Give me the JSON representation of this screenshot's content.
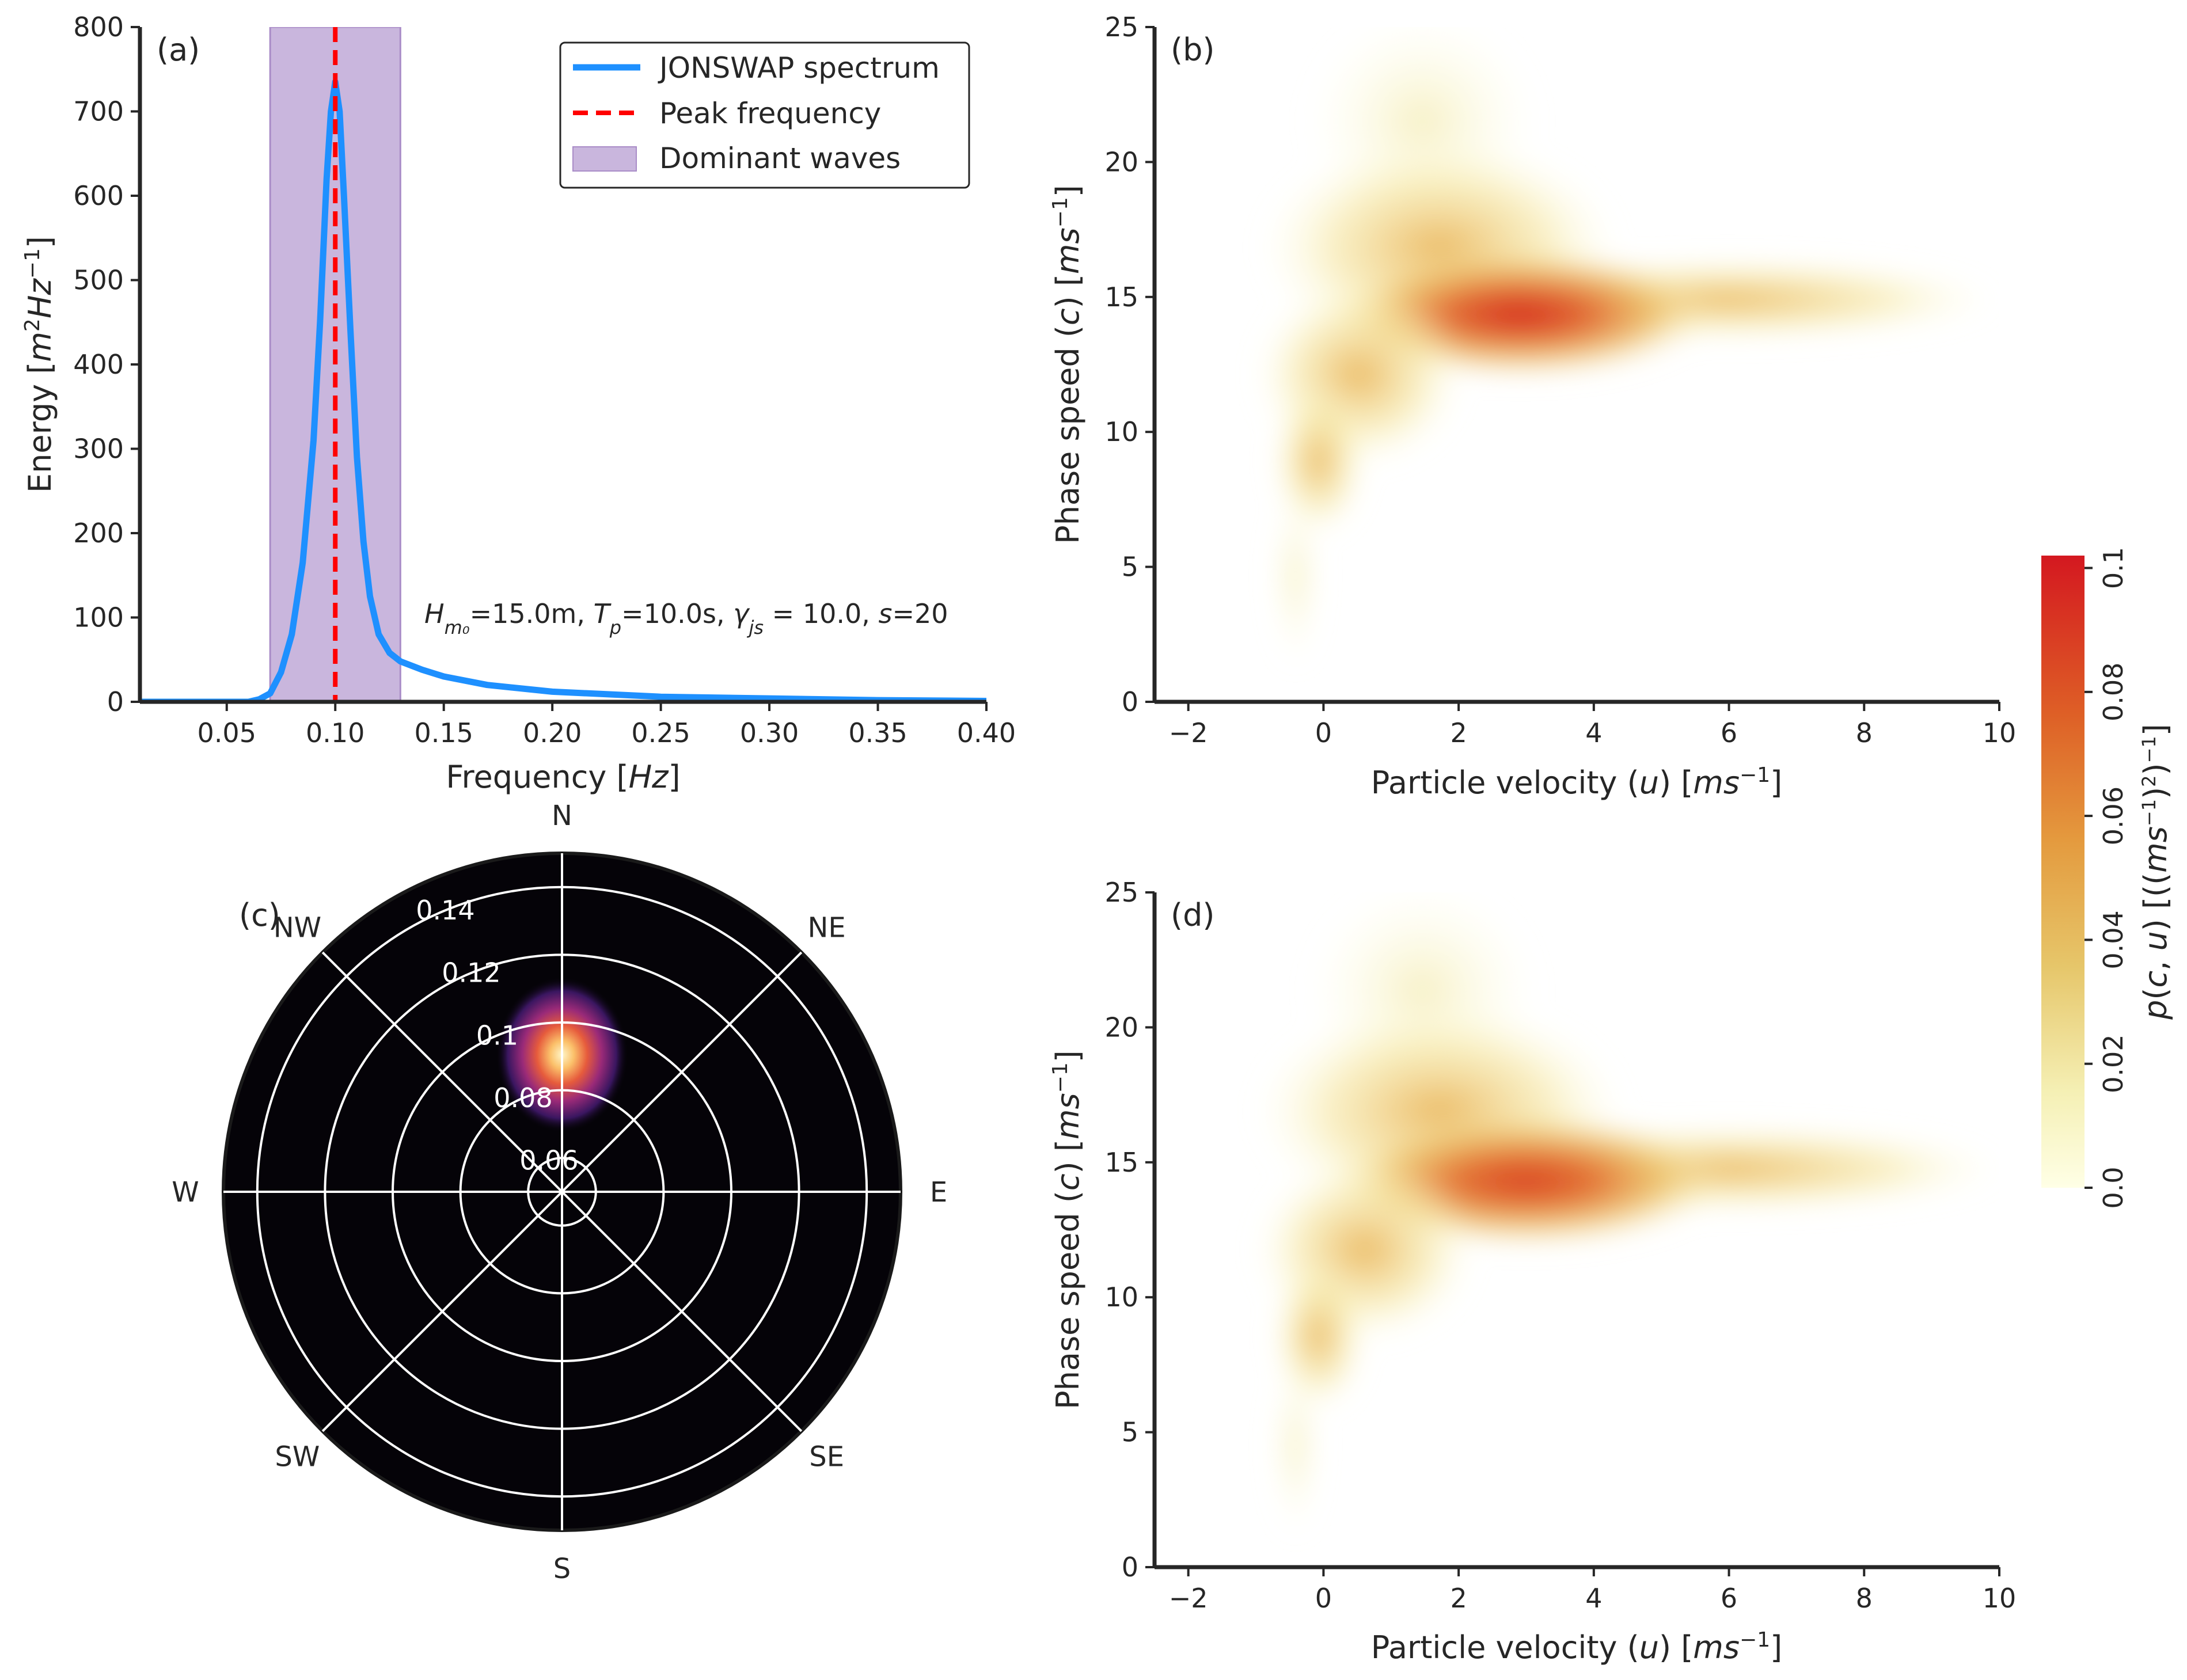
{
  "chart_data": [
    {
      "id": "a",
      "type": "line",
      "panel_label": "(a)",
      "xlabel": "Frequency [Hz]",
      "ylabel": "Energy [m²Hz⁻¹]",
      "xlim": [
        0.01,
        0.4
      ],
      "ylim": [
        0,
        800
      ],
      "xticks": [
        "0.05",
        "0.10",
        "0.15",
        "0.20",
        "0.25",
        "0.30",
        "0.35",
        "0.40"
      ],
      "xtick_values": [
        0.05,
        0.1,
        0.15,
        0.2,
        0.25,
        0.3,
        0.35,
        0.4
      ],
      "yticks": [
        "0",
        "100",
        "200",
        "300",
        "400",
        "500",
        "600",
        "700",
        "800"
      ],
      "ytick_values": [
        0,
        100,
        200,
        300,
        400,
        500,
        600,
        700,
        800
      ],
      "series": [
        {
          "name": "JONSWAP spectrum",
          "color": "#1e90ff",
          "x": [
            0.01,
            0.05,
            0.06,
            0.065,
            0.07,
            0.075,
            0.08,
            0.085,
            0.09,
            0.093,
            0.096,
            0.098,
            0.1,
            0.102,
            0.104,
            0.107,
            0.11,
            0.113,
            0.116,
            0.12,
            0.125,
            0.13,
            0.14,
            0.15,
            0.17,
            0.2,
            0.25,
            0.3,
            0.35,
            0.4
          ],
          "y": [
            0,
            0,
            0,
            3,
            10,
            35,
            80,
            165,
            310,
            450,
            620,
            700,
            735,
            700,
            600,
            440,
            290,
            190,
            125,
            80,
            58,
            48,
            38,
            30,
            20,
            12,
            6,
            4,
            2,
            1
          ]
        }
      ],
      "peak_frequency": {
        "name": "Peak frequency",
        "x": 0.1,
        "color": "#ff0000"
      },
      "dominant_band": {
        "name": "Dominant waves",
        "x0": 0.07,
        "x1": 0.13,
        "color": "#c9b6dd"
      },
      "annotation": "H_m0=15.0m, T_p=10.0s, γ_js = 10.0, s=20",
      "annotation_parts": {
        "h_symbol": "H",
        "h_sub": "m₀",
        "h_val": "=15.0m, ",
        "t_symbol": "T",
        "t_sub": "p",
        "t_val": "=10.0s, ",
        "g_symbol": "γ",
        "g_sub": "js",
        "g_val": " = 10.0, ",
        "s_symbol": "s",
        "s_val": "=20"
      },
      "legend": [
        "JONSWAP spectrum",
        "Peak frequency",
        "Dominant waves"
      ],
      "legend_position": "top-right"
    },
    {
      "id": "b",
      "type": "heatmap",
      "panel_label": "(b)",
      "xlabel": "Particle velocity (u) [ms⁻¹]",
      "ylabel": "Phase speed (c) [ms⁻¹]",
      "xlim": [
        -2.5,
        10
      ],
      "ylim": [
        0,
        25
      ],
      "xticks": [
        "−2",
        "0",
        "2",
        "4",
        "6",
        "8",
        "10"
      ],
      "xtick_values": [
        -2,
        0,
        2,
        4,
        6,
        8,
        10
      ],
      "yticks": [
        "0",
        "5",
        "10",
        "15",
        "20",
        "25"
      ],
      "ytick_values": [
        0,
        5,
        10,
        15,
        20,
        25
      ],
      "peak": {
        "u": 3.0,
        "c": 14.5,
        "value": 0.1
      }
    },
    {
      "id": "c",
      "type": "polar heatmap",
      "panel_label": "(c)",
      "directions": [
        "N",
        "NE",
        "E",
        "SE",
        "S",
        "SW",
        "W",
        "NW"
      ],
      "radial_ticks": [
        "0.06",
        "0.08",
        "0.1",
        "0.12",
        "0.14"
      ],
      "radial_values": [
        0.06,
        0.08,
        0.1,
        0.12,
        0.14
      ],
      "rlim": [
        0.05,
        0.15
      ],
      "peak": {
        "direction_deg": 0,
        "frequency": 0.1
      }
    },
    {
      "id": "d",
      "type": "heatmap",
      "panel_label": "(d)",
      "xlabel": "Particle velocity (u) [ms⁻¹]",
      "ylabel": "Phase speed (c) [ms⁻¹]",
      "xlim": [
        -2.5,
        10
      ],
      "ylim": [
        0,
        25
      ],
      "xticks": [
        "−2",
        "0",
        "2",
        "4",
        "6",
        "8",
        "10"
      ],
      "xtick_values": [
        -2,
        0,
        2,
        4,
        6,
        8,
        10
      ],
      "yticks": [
        "0",
        "5",
        "10",
        "15",
        "20",
        "25"
      ],
      "ytick_values": [
        0,
        5,
        10,
        15,
        20,
        25
      ],
      "peak": {
        "u": 3.0,
        "c": 14.6,
        "value": 0.09
      }
    }
  ],
  "colorbar": {
    "label": "p(c, u) [((ms⁻¹)²)⁻¹]",
    "ticks": [
      "0.0",
      "0.02",
      "0.04",
      "0.06",
      "0.08",
      "0.1"
    ],
    "tick_values": [
      0.0,
      0.02,
      0.04,
      0.06,
      0.08,
      0.1
    ],
    "range": [
      0,
      0.102
    ],
    "colormap": "YlOrRd"
  },
  "colors": {
    "axis": "#262626",
    "spectrum": "#1e90ff",
    "peak": "#ff0000",
    "band": "#c9b6dd",
    "band_edge": "#a98cc7",
    "polar_bg": "#050308",
    "polar_grid": "#ffffff"
  }
}
